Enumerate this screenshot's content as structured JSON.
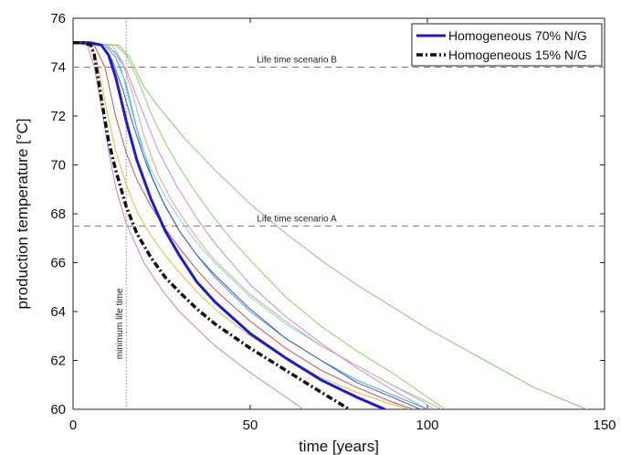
{
  "chart_data": {
    "type": "line",
    "xlabel": "time [years]",
    "ylabel": "production temperature [°C]",
    "xlim": [
      0,
      150
    ],
    "ylim": [
      60,
      76
    ],
    "xticks": [
      0,
      50,
      100,
      150
    ],
    "yticks": [
      60,
      62,
      64,
      66,
      68,
      70,
      72,
      74,
      76
    ],
    "grid": false,
    "legend_position": "top-right",
    "legend": [
      {
        "label": "Homogeneous 70% N/G",
        "color": "#1a1adb",
        "style": "solid-thick"
      },
      {
        "label": "Homogeneous 15% N/G",
        "color": "#111111",
        "style": "dash-dot-thick"
      }
    ],
    "reference_lines": [
      {
        "orientation": "horizontal",
        "y": 74,
        "label": "Life time scenario B"
      },
      {
        "orientation": "horizontal",
        "y": 67.5,
        "label": "Life time scenario A"
      },
      {
        "orientation": "vertical",
        "x": 15,
        "label": "minimum life time"
      }
    ],
    "series": [
      {
        "name": "Homogeneous 70% N/G",
        "color": "#1a1adb",
        "width": 3,
        "dash": "",
        "x": [
          0,
          5,
          8,
          10,
          12,
          15,
          18,
          22,
          26,
          30,
          35,
          40,
          50,
          60,
          70,
          80,
          88
        ],
        "y": [
          75,
          75,
          74.9,
          74.5,
          73.6,
          71.8,
          70.2,
          68.6,
          67.3,
          66.3,
          65.2,
          64.4,
          63.1,
          62.1,
          61.2,
          60.5,
          60
        ]
      },
      {
        "name": "Homogeneous 15% N/G",
        "color": "#111111",
        "width": 3.5,
        "dash": "7,3,2,3",
        "x": [
          0,
          3,
          5,
          6,
          8,
          10,
          12,
          15,
          18,
          22,
          26,
          30,
          35,
          40,
          50,
          60,
          70,
          78
        ],
        "y": [
          75,
          75,
          74.9,
          74.5,
          72.7,
          71.0,
          69.8,
          68.3,
          67.2,
          66.2,
          65.4,
          64.8,
          64.1,
          63.5,
          62.5,
          61.6,
          60.7,
          60
        ]
      },
      {
        "color": "#c080d8",
        "width": 1,
        "dash": "",
        "x": [
          0,
          4,
          6,
          8,
          10,
          12,
          15,
          20,
          25,
          30,
          40,
          50,
          60,
          65
        ],
        "y": [
          75,
          74.9,
          74.0,
          72.4,
          70.6,
          69.1,
          67.6,
          66.0,
          64.9,
          64.0,
          62.6,
          61.5,
          60.5,
          60
        ]
      },
      {
        "color": "#f0b830",
        "width": 1,
        "dash": "",
        "x": [
          0,
          5,
          7,
          9,
          12,
          15,
          18,
          22,
          26,
          30,
          35,
          40,
          50,
          60,
          70,
          80,
          90,
          95
        ],
        "y": [
          75,
          74.9,
          74.1,
          72.6,
          70.6,
          69.2,
          68.1,
          67.1,
          66.3,
          65.6,
          64.8,
          64.1,
          63.0,
          62.1,
          61.3,
          60.7,
          60.2,
          60
        ]
      },
      {
        "color": "#d05050",
        "width": 1,
        "dash": "",
        "x": [
          0,
          6,
          9,
          12,
          15,
          18,
          22,
          26,
          30,
          35,
          40,
          50,
          60,
          70,
          80,
          90,
          96
        ],
        "y": [
          75,
          74.9,
          74.0,
          72.0,
          70.5,
          69.4,
          68.3,
          67.4,
          66.6,
          65.7,
          64.9,
          63.6,
          62.5,
          61.6,
          60.9,
          60.3,
          60
        ]
      },
      {
        "color": "#40a0e0",
        "width": 1,
        "dash": "",
        "x": [
          0,
          9,
          12,
          15,
          18,
          22,
          26,
          30,
          35,
          40,
          50,
          60,
          70,
          80,
          90,
          100
        ],
        "y": [
          75,
          74.9,
          74.4,
          73.3,
          71.5,
          69.6,
          68.3,
          67.3,
          66.3,
          65.4,
          64.0,
          62.9,
          62.0,
          61.2,
          60.6,
          60
        ]
      },
      {
        "color": "#70d8e8",
        "width": 1,
        "dash": "",
        "x": [
          0,
          10,
          13,
          16,
          19,
          22,
          26,
          30,
          35,
          40,
          50,
          60,
          70,
          80,
          90,
          100,
          102
        ],
        "y": [
          75,
          74.9,
          74.3,
          72.5,
          70.9,
          69.8,
          68.7,
          67.8,
          66.8,
          66.0,
          64.6,
          63.5,
          62.6,
          61.8,
          61.0,
          60.2,
          60
        ]
      },
      {
        "color": "#e8a080",
        "width": 1,
        "dash": "",
        "x": [
          0,
          11,
          14,
          17,
          20,
          24,
          28,
          32,
          36,
          40,
          50,
          60,
          70,
          80,
          90,
          100,
          104
        ],
        "y": [
          75,
          74.9,
          74.2,
          72.8,
          71.2,
          69.6,
          68.5,
          67.6,
          66.8,
          66.1,
          64.7,
          63.6,
          62.6,
          61.8,
          61.0,
          60.3,
          60
        ]
      },
      {
        "color": "#3858c0",
        "width": 1,
        "dash": "",
        "x": [
          0,
          8,
          11,
          14,
          17,
          21,
          25,
          30,
          35,
          40,
          50,
          60,
          70,
          80,
          90,
          98
        ],
        "y": [
          75,
          74.9,
          74.3,
          73.1,
          71.6,
          69.9,
          68.6,
          67.3,
          66.3,
          65.5,
          64.1,
          62.9,
          62.0,
          61.1,
          60.5,
          60
        ]
      },
      {
        "color": "#b890e0",
        "width": 1,
        "dash": "",
        "x": [
          0,
          9,
          12,
          15,
          19,
          24,
          29,
          35,
          40,
          50,
          60,
          70,
          80,
          90,
          100
        ],
        "y": [
          75,
          74.9,
          74.6,
          73.9,
          72.4,
          70.6,
          69.2,
          67.8,
          66.8,
          65.1,
          63.8,
          62.7,
          61.7,
          60.8,
          60
        ]
      },
      {
        "color": "#8ccf6c",
        "width": 1,
        "dash": "",
        "x": [
          0,
          12,
          15,
          18,
          22,
          26,
          30,
          35,
          40,
          45,
          50,
          60,
          70,
          80,
          90,
          100,
          105
        ],
        "y": [
          75,
          74.9,
          74.5,
          73.6,
          72.1,
          70.9,
          69.9,
          68.8,
          67.8,
          66.9,
          66.1,
          64.6,
          63.4,
          62.4,
          61.5,
          60.5,
          60
        ]
      },
      {
        "color": "#88c878",
        "width": 1,
        "dash": "",
        "x": [
          0,
          13,
          16,
          20,
          24,
          28,
          32,
          36,
          40,
          50,
          60,
          70,
          80,
          90,
          100,
          110,
          120,
          130,
          140,
          145
        ],
        "y": [
          75,
          74.9,
          74.4,
          73.2,
          72.4,
          71.7,
          71.0,
          70.4,
          69.8,
          68.4,
          67.2,
          66.1,
          65.1,
          64.2,
          63.3,
          62.5,
          61.7,
          60.9,
          60.3,
          60
        ]
      }
    ]
  }
}
